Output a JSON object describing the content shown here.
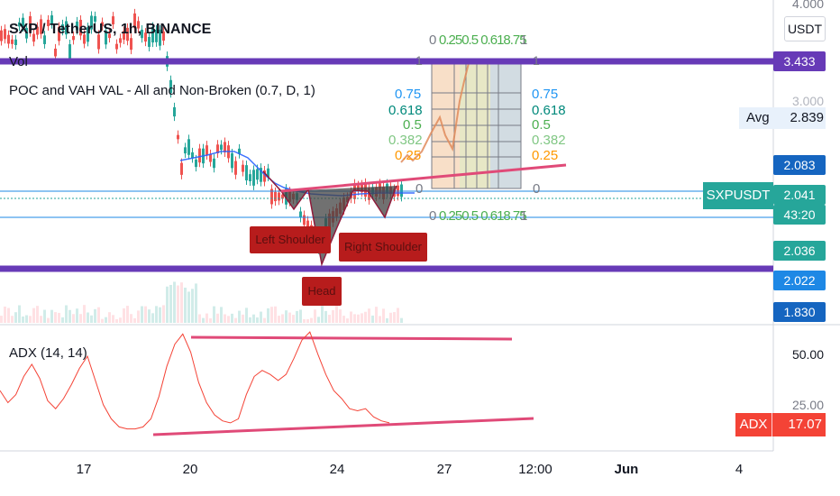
{
  "header": {
    "symbol_title": "SXP / TetherUS, 1h, BINANCE",
    "vol_label": "Vol",
    "indicator_label": "POC and VAH VAL - All and Non-Broken (0.7, D, 1)",
    "adx_label": "ADX (14, 14)",
    "currency_badge": "USDT"
  },
  "price_scale": {
    "top_cut_tick": "4.000",
    "tick_3000": "3.000",
    "avg_label": "Avg",
    "avg_value": "2.839",
    "tags": {
      "purple_high": "3.433",
      "blue_2083": "2.083",
      "symbol": "SXPUSDT",
      "last": "2.041",
      "countdown": "43:20",
      "green_2036": "2.036",
      "blue_2022": "2.022",
      "blue_1830": "1.830"
    }
  },
  "adx_scale": {
    "tick_50": "50.00",
    "tick_25": "25.00",
    "adx_tag_label": "ADX",
    "adx_tag_value": "17.07"
  },
  "time_axis": {
    "ticks": [
      "17",
      "20",
      "24",
      "27",
      "12:00",
      "Jun",
      "4"
    ]
  },
  "annotations": {
    "left_shoulder": "Left Shoulder",
    "right_shoulder": "Right Shoulder",
    "head": "Head"
  },
  "fib": {
    "left_levels": [
      "0.75",
      "0.618",
      "0.5",
      "0.382",
      "0.25"
    ],
    "right_levels": [
      "0.75",
      "0.618",
      "0.5",
      "0.382",
      "0.25"
    ],
    "top_zero": "0",
    "top_one": "1",
    "right_zero": "0",
    "right_one": "1",
    "bottom_zero": "0",
    "bottom_one": "1",
    "stacked_levels_text": "0.250.5 0.618.75"
  },
  "chart_data": {
    "type": "line",
    "title": "SXP / TetherUS, 1h, BINANCE",
    "x_ticks": [
      "17",
      "20",
      "24",
      "27",
      "12:00",
      "Jun",
      "4"
    ],
    "price_axis_visible_ticks": [
      4.0,
      3.0
    ],
    "price_levels": {
      "purple_resistance": 3.433,
      "average": 2.839,
      "blue_level": 2.083,
      "last": 2.041,
      "green_level": 2.036,
      "purple_support_blue_tag": 2.022,
      "lower_blue": 1.83
    },
    "adx": {
      "axis_ticks": [
        50,
        25
      ],
      "last_value": 17.07,
      "series": [
        {
          "name": "ADX",
          "values": [
            33,
            27,
            31,
            40,
            46,
            39,
            28,
            24,
            29,
            36,
            44,
            50,
            38,
            26,
            19,
            15,
            14,
            14,
            15,
            19,
            30,
            45,
            56,
            61,
            52,
            37,
            27,
            21,
            18,
            17,
            19,
            31,
            40,
            43,
            41,
            38,
            41,
            49,
            58,
            62,
            51,
            41,
            33,
            29,
            24,
            23,
            24,
            20,
            18,
            17
          ]
        }
      ]
    }
  }
}
